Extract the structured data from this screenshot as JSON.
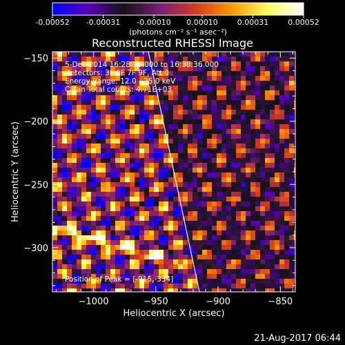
{
  "chart_data": {
    "type": "heatmap",
    "title": "Reconstructed RHESSI Image",
    "colorbar": {
      "tick_labels": [
        "-0.00052",
        "-0.00031",
        "-0.00010",
        "0.00010",
        "0.00031",
        "0.00052"
      ],
      "range": [
        -0.00052,
        0.00052
      ],
      "unit_label": "(photons cm⁻² s⁻¹ asec⁻²)",
      "colormap": [
        "#0000ff",
        "#5a00b4",
        "#141414",
        "#781e78",
        "#d23c1e",
        "#ff9600",
        "#ffff64",
        "#ffffff"
      ]
    },
    "xlabel": "Heliocentric X (arcsec)",
    "ylabel": "Heliocentric Y (arcsec)",
    "xlim": [
      -1033,
      -838
    ],
    "ylim": [
      -335,
      -145
    ],
    "xticks": [
      -1000,
      -950,
      -900,
      -850
    ],
    "xtick_labels": [
      "−1000",
      "−950",
      "−900",
      "−850"
    ],
    "yticks": [
      -300,
      -250,
      -200,
      -150
    ],
    "ytick_labels": [
      "−300",
      "−250",
      "−200",
      "−150"
    ],
    "annotations": [
      "5-Dec-2014 16:28:36.000 to 16:38:36.000",
      "Detectors: 3F 6F 7F 9F, Att 0",
      "Energy Range: 12.0 - 25.0 keV",
      "Clean    Total counts: 4.71E+03"
    ],
    "peak_label": "Position of Peak = [-915,-334]",
    "peak": [
      -915,
      -334
    ],
    "limb": [
      [
        -956,
        -145
      ],
      [
        -915,
        -335
      ]
    ],
    "grid": false
  },
  "footer": {
    "timestamp": "21-Aug-2017 06:44"
  }
}
